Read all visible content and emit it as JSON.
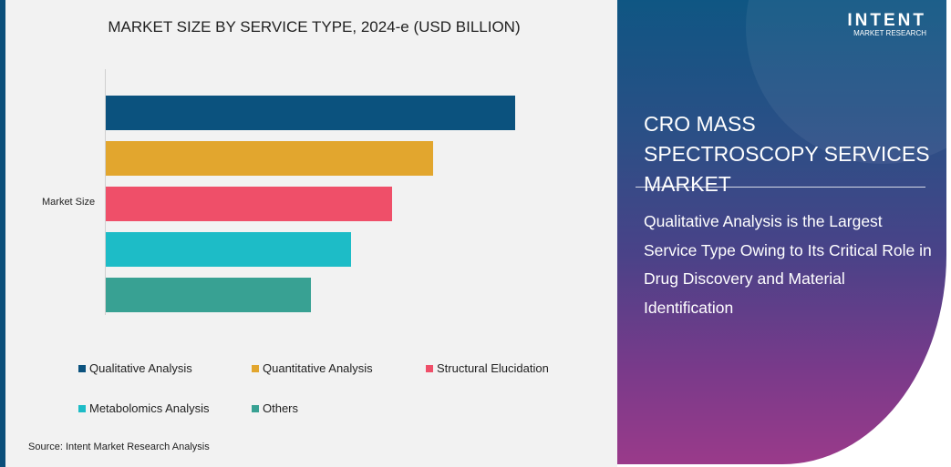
{
  "chart_data": {
    "type": "bar",
    "orientation": "horizontal",
    "title": "MARKET SIZE BY SERVICE TYPE, 2024-e (USD BILLION)",
    "categories": [
      "Market Size"
    ],
    "series": [
      {
        "name": "Qualitative Analysis",
        "values": [
          100
        ],
        "color": "#0b527e"
      },
      {
        "name": "Quantitative Analysis",
        "values": [
          80
        ],
        "color": "#e2a62e"
      },
      {
        "name": "Structural Elucidation",
        "values": [
          70
        ],
        "color": "#ef4f69"
      },
      {
        "name": "Metabolomics Analysis",
        "values": [
          60
        ],
        "color": "#1dbcc7"
      },
      {
        "name": "Others",
        "values": [
          50
        ],
        "color": "#38a193"
      }
    ],
    "legend_position": "bottom",
    "grid": false
  },
  "source": "Source:  Intent Market Research Analysis",
  "panel": {
    "logo_brand": "INTENT",
    "logo_sub": "MARKET RESEARCH",
    "headline": "CRO MASS SPECTROSCOPY SERVICES MARKET",
    "description": "Qualitative Analysis is the Largest Service Type Owing to Its Critical Role in Drug Discovery and Material Identification"
  }
}
